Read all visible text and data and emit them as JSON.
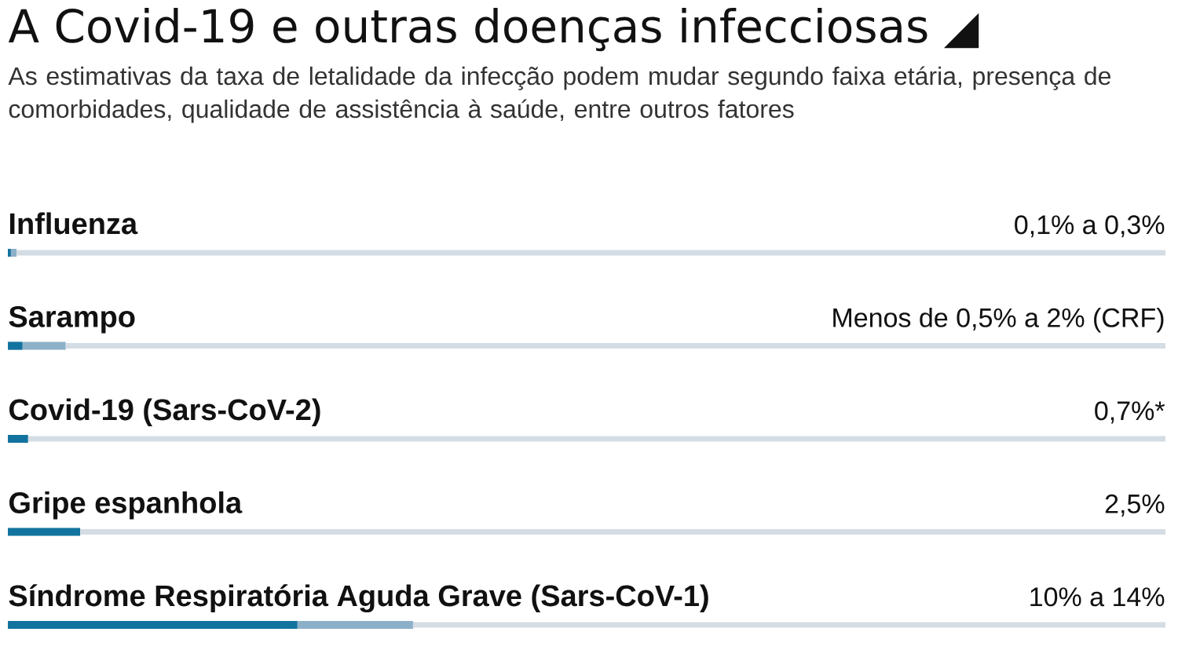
{
  "chart_data": {
    "type": "bar",
    "orientation": "horizontal",
    "title": "A Covid-19 e outras doenças infecciosas ◢",
    "subtitle": "As estimativas da taxa de letalidade da infecção podem mudar segundo faixa etária, presença de comorbidades, qualidade de assistência à saúde, entre outros fatores",
    "categories": [
      "Influenza",
      "Sarampo",
      "Covid-19 (Sars-CoV-2)",
      "Gripe espanhola",
      "Síndrome Respiratória Aguda Grave (Sars-CoV-1)"
    ],
    "series": [
      {
        "color": "#8db0c9",
        "values": [
          0.3,
          2,
          null,
          null,
          14
        ],
        "value_labels": [
          "0,1% a 0,3%",
          "Menos de 0,5% a 2% (CRF)",
          null,
          null,
          "10% a 14%"
        ]
      },
      {
        "color": "#12739f",
        "values": [
          0.1,
          0.5,
          0.7,
          2.5,
          10
        ],
        "value_labels": [
          null,
          null,
          "0,7%*",
          "2,5%",
          null
        ]
      }
    ],
    "xlim": [
      0,
      40
    ],
    "tick_labels": "y"
  }
}
